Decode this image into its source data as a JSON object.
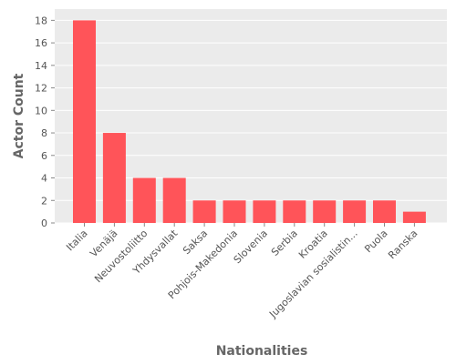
{
  "chart_data": {
    "type": "bar",
    "title": "",
    "xlabel": "Nationalities",
    "ylabel": "Actor Count",
    "categories": [
      "Italia",
      "Venäjä",
      "Neuvostoliitto",
      "Yhdysvallat",
      "Saksa",
      "Pohjois-Makedonia",
      "Slovenia",
      "Serbia",
      "Kroatia",
      "Jugoslavian sosialistin...",
      "Puola",
      "Ranska"
    ],
    "values": [
      18,
      8,
      4,
      4,
      2,
      2,
      2,
      2,
      2,
      2,
      2,
      1
    ],
    "ylim": [
      0,
      19
    ],
    "yticks": [
      0,
      2,
      4,
      6,
      8,
      10,
      12,
      14,
      16,
      18
    ],
    "grid": true,
    "legend": "none",
    "colors": {
      "bar": "#ff5459",
      "plot_background": "#ebebeb",
      "grid": "#ffffff",
      "text": "#555555"
    }
  }
}
